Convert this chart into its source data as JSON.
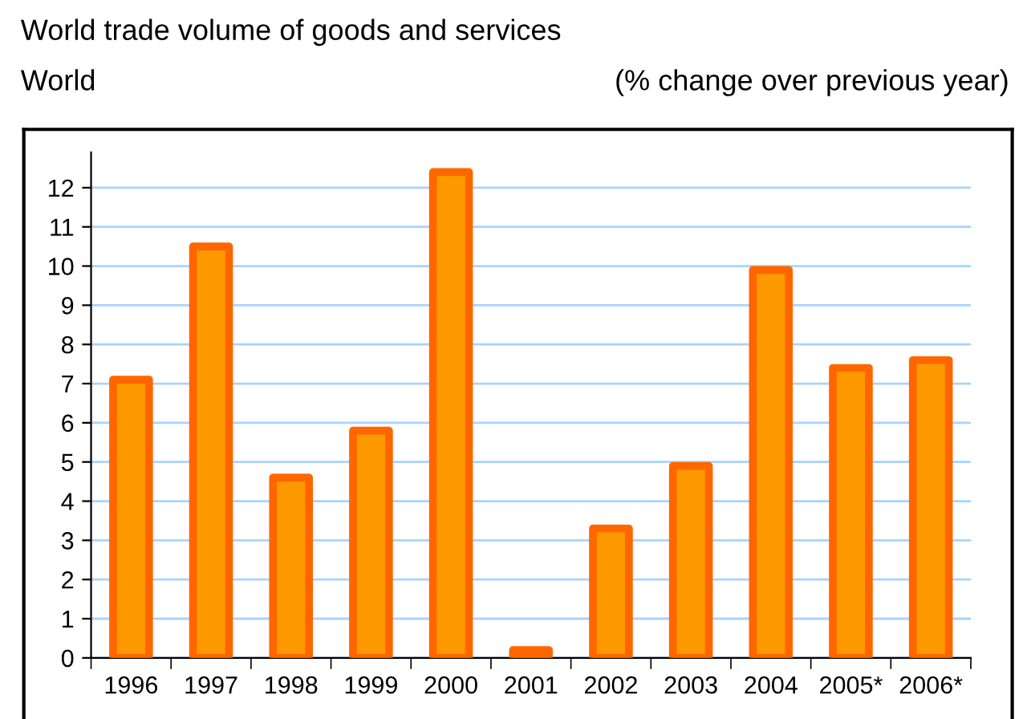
{
  "chart_data": {
    "type": "bar",
    "title": "World trade volume of goods and services",
    "subtitle": "World",
    "ylabel": "(% change over previous year)",
    "categories": [
      "1996",
      "1997",
      "1998",
      "1999",
      "2000",
      "2001",
      "2002",
      "2003",
      "2004",
      "2005*",
      "2006*"
    ],
    "values": [
      7.1,
      10.5,
      4.6,
      5.8,
      12.4,
      0.2,
      3.3,
      4.9,
      9.9,
      7.4,
      7.6
    ],
    "color": "#ff9900",
    "ylim": [
      0,
      12.9
    ],
    "yticks": [
      0,
      1,
      2,
      3,
      4,
      5,
      6,
      7,
      8,
      9,
      10,
      11,
      12
    ],
    "grid": "y",
    "legend": false
  }
}
